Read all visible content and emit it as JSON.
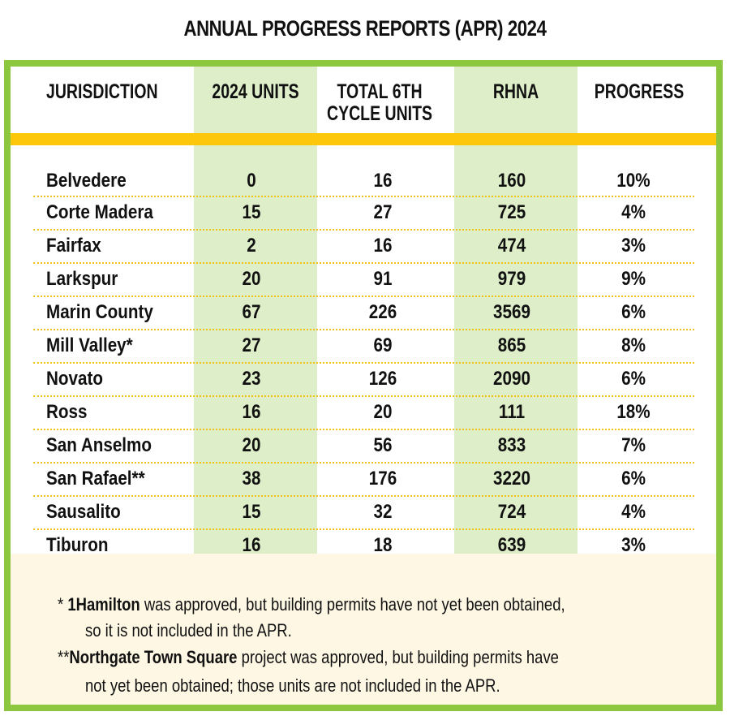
{
  "title": "ANNUAL PROGRESS REPORTS (APR) 2024",
  "table": {
    "headers": {
      "jurisdiction": "JURISDICTION",
      "units_2024": "2024 UNITS",
      "total_line1": "TOTAL 6TH",
      "total_line2": "CYCLE UNITS",
      "rhna": "RHNA",
      "progress": "PROGRESS"
    },
    "rows": [
      {
        "name": "Belvedere",
        "units_2024": "0",
        "total": "16",
        "rhna": "160",
        "progress": "10%"
      },
      {
        "name": "Corte Madera",
        "units_2024": "15",
        "total": "27",
        "rhna": "725",
        "progress": "4%"
      },
      {
        "name": "Fairfax",
        "units_2024": "2",
        "total": "16",
        "rhna": "474",
        "progress": "3%"
      },
      {
        "name": "Larkspur",
        "units_2024": "20",
        "total": "91",
        "rhna": "979",
        "progress": "9%"
      },
      {
        "name": "Marin County",
        "units_2024": "67",
        "total": "226",
        "rhna": "3569",
        "progress": "6%"
      },
      {
        "name": "Mill Valley*",
        "units_2024": "27",
        "total": "69",
        "rhna": "865",
        "progress": "8%"
      },
      {
        "name": "Novato",
        "units_2024": "23",
        "total": "126",
        "rhna": "2090",
        "progress": "6%"
      },
      {
        "name": "Ross",
        "units_2024": "16",
        "total": "20",
        "rhna": "111",
        "progress": "18%"
      },
      {
        "name": "San Anselmo",
        "units_2024": "20",
        "total": "56",
        "rhna": "833",
        "progress": "7%"
      },
      {
        "name": "San Rafael**",
        "units_2024": "38",
        "total": "176",
        "rhna": "3220",
        "progress": "6%"
      },
      {
        "name": "Sausalito",
        "units_2024": "15",
        "total": "32",
        "rhna": "724",
        "progress": "4%"
      },
      {
        "name": "Tiburon",
        "units_2024": "16",
        "total": "18",
        "rhna": "639",
        "progress": "3%"
      }
    ]
  },
  "footnotes": {
    "note1": {
      "marker": "* ",
      "bold": "1Hamilton",
      "text1": " was approved, but building permits have not yet been obtained,",
      "text2": "so it is not included  in the APR."
    },
    "note2": {
      "marker": "**",
      "bold": "Northgate Town Square",
      "text1": " project was approved, but building permits have",
      "text2": "not yet been obtained; those units are not included in the APR."
    }
  },
  "colors": {
    "border_green": "#8dc63f",
    "column_green": "#ddeec8",
    "header_yellow": "#fdc70c",
    "footer_cream": "#fdf7e4"
  }
}
